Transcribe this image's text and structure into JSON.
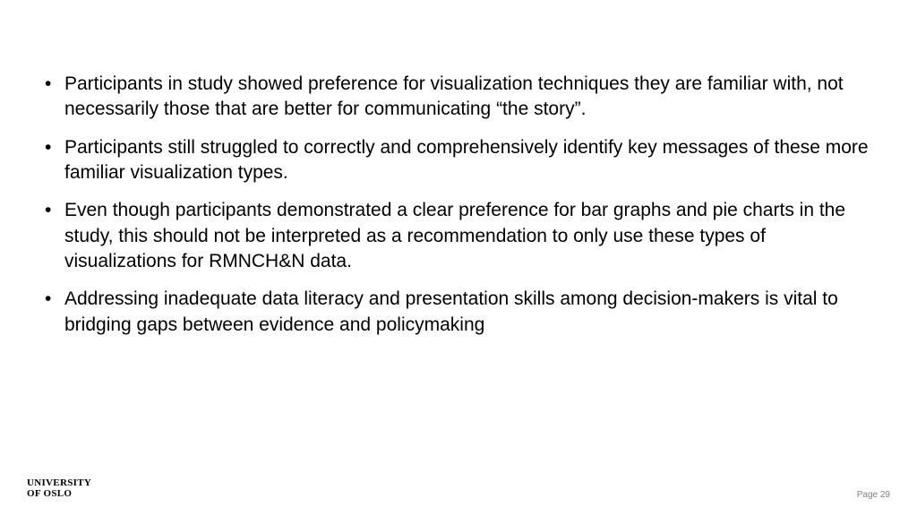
{
  "bullets": [
    "Participants in study showed preference for visualization techniques they are familiar with, not necessarily those that are better for communicating “the story”.",
    "Participants still struggled to correctly and comprehensively identify key messages of these more familiar visualization types.",
    "Even though participants demonstrated a clear preference for bar graphs and pie charts in the study, this should not be interpreted as a recommendation to only use these types of visualizations for RMNCH&N data.",
    "Addressing inadequate data literacy and presentation skills among decision-makers is vital to bridging gaps between evidence and policymaking"
  ],
  "footer": {
    "institution_line1": "UNIVERSITY",
    "institution_line2": "OF OSLO",
    "page_label": "Page 29"
  },
  "styling": {
    "background_color": "#ffffff",
    "text_color": "#000000",
    "page_number_color": "#808080",
    "body_fontsize": 21,
    "institution_fontsize": 11,
    "pagenum_fontsize": 10
  }
}
